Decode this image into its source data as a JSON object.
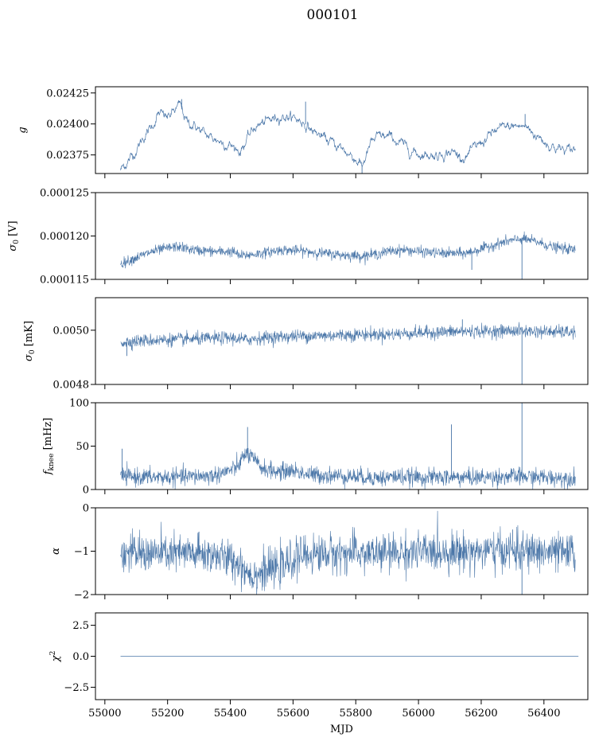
{
  "figure_title": "000101",
  "series_color": "#4a76a8",
  "chart_data": [
    {
      "type": "line",
      "ylabel": "g",
      "ylim": [
        0.0236,
        0.0243
      ],
      "yticks": [
        0.02375,
        0.024,
        0.02425
      ],
      "ytick_labels": [
        "0.02375",
        "0.02400",
        "0.02425"
      ],
      "xlim": [
        54970,
        56540
      ],
      "noise": 2.5e-05,
      "trend": [
        [
          55050,
          0.02363
        ],
        [
          55090,
          0.02375
        ],
        [
          55120,
          0.02388
        ],
        [
          55150,
          0.02398
        ],
        [
          55170,
          0.02408
        ],
        [
          55200,
          0.02405
        ],
        [
          55240,
          0.02415
        ],
        [
          55260,
          0.02402
        ],
        [
          55290,
          0.02398
        ],
        [
          55320,
          0.02391
        ],
        [
          55350,
          0.02388
        ],
        [
          55400,
          0.02383
        ],
        [
          55430,
          0.02378
        ],
        [
          55480,
          0.02398
        ],
        [
          55520,
          0.02402
        ],
        [
          55560,
          0.02407
        ],
        [
          55600,
          0.02405
        ],
        [
          55630,
          0.02402
        ],
        [
          55660,
          0.02395
        ],
        [
          55700,
          0.02388
        ],
        [
          55750,
          0.02381
        ],
        [
          55800,
          0.02372
        ],
        [
          55820,
          0.02366
        ],
        [
          55850,
          0.02385
        ],
        [
          55880,
          0.0239
        ],
        [
          55920,
          0.02388
        ],
        [
          55960,
          0.02381
        ],
        [
          56000,
          0.02376
        ],
        [
          56060,
          0.02375
        ],
        [
          56100,
          0.02378
        ],
        [
          56150,
          0.02373
        ],
        [
          56200,
          0.02385
        ],
        [
          56250,
          0.02395
        ],
        [
          56300,
          0.02398
        ],
        [
          56340,
          0.02398
        ],
        [
          56380,
          0.0239
        ],
        [
          56420,
          0.02383
        ],
        [
          56470,
          0.02378
        ],
        [
          56500,
          0.0238
        ]
      ],
      "spikes": [
        [
          55245,
          0.0242
        ],
        [
          55640,
          0.02418
        ],
        [
          56340,
          0.02408
        ],
        [
          55820,
          0.0236
        ]
      ]
    },
    {
      "type": "line",
      "ylabel": "σ0 [V]",
      "ylim": [
        0.000115,
        0.000125
      ],
      "yticks": [
        0.000115,
        0.00012,
        0.000125
      ],
      "ytick_labels": [
        "0.000115",
        "0.000120",
        "0.000125"
      ],
      "xlim": [
        54970,
        56540
      ],
      "noise": 3e-07,
      "trend": [
        [
          55050,
          0.0001168
        ],
        [
          55100,
          0.0001175
        ],
        [
          55150,
          0.0001182
        ],
        [
          55200,
          0.0001186
        ],
        [
          55230,
          0.0001188
        ],
        [
          55280,
          0.0001184
        ],
        [
          55350,
          0.0001182
        ],
        [
          55410,
          0.0001182
        ],
        [
          55430,
          0.0001177
        ],
        [
          55500,
          0.000118
        ],
        [
          55560,
          0.0001184
        ],
        [
          55620,
          0.0001183
        ],
        [
          55700,
          0.000118
        ],
        [
          55760,
          0.0001178
        ],
        [
          55820,
          0.0001177
        ],
        [
          55880,
          0.000118
        ],
        [
          55910,
          0.0001183
        ],
        [
          55960,
          0.0001184
        ],
        [
          56000,
          0.0001182
        ],
        [
          56080,
          0.000118
        ],
        [
          56150,
          0.000118
        ],
        [
          56200,
          0.0001185
        ],
        [
          56260,
          0.0001192
        ],
        [
          56330,
          0.0001197
        ],
        [
          56380,
          0.0001193
        ],
        [
          56430,
          0.0001187
        ],
        [
          56500,
          0.0001184
        ]
      ],
      "spikes": [
        [
          56330,
          0.000115
        ],
        [
          56170,
          0.0001161
        ]
      ]
    },
    {
      "type": "line",
      "ylabel": "σ0 [mK]",
      "ylim": [
        0.0048,
        0.00512
      ],
      "yticks": [
        0.0048,
        0.005
      ],
      "ytick_labels": [
        "0.0048",
        "0.0050"
      ],
      "xlim": [
        54970,
        56540
      ],
      "noise": 1.2e-05,
      "trend": [
        [
          55050,
          0.004955
        ],
        [
          55100,
          0.00496
        ],
        [
          55200,
          0.004965
        ],
        [
          55300,
          0.004968
        ],
        [
          55400,
          0.004972
        ],
        [
          55450,
          0.004965
        ],
        [
          55500,
          0.004972
        ],
        [
          55600,
          0.004978
        ],
        [
          55700,
          0.00498
        ],
        [
          55800,
          0.004984
        ],
        [
          55900,
          0.004985
        ],
        [
          56000,
          0.00499
        ],
        [
          56100,
          0.004994
        ],
        [
          56200,
          0.004996
        ],
        [
          56300,
          0.004998
        ],
        [
          56400,
          0.004995
        ],
        [
          56500,
          0.004992
        ]
      ],
      "spikes": [
        [
          56330,
          0.0048
        ],
        [
          55070,
          0.004905
        ],
        [
          56140,
          0.00504
        ]
      ]
    },
    {
      "type": "line",
      "ylabel": "f_knee [mHz]",
      "ylim": [
        0,
        100
      ],
      "yticks": [
        0,
        50,
        100
      ],
      "ytick_labels": [
        "0",
        "50",
        "100"
      ],
      "xlim": [
        54970,
        56540
      ],
      "noise": 5,
      "trend": [
        [
          55050,
          15
        ],
        [
          55200,
          14
        ],
        [
          55350,
          16
        ],
        [
          55420,
          25
        ],
        [
          55450,
          42
        ],
        [
          55470,
          36
        ],
        [
          55500,
          25
        ],
        [
          55550,
          20
        ],
        [
          55600,
          22
        ],
        [
          55650,
          17
        ],
        [
          55800,
          15
        ],
        [
          55900,
          13
        ],
        [
          55910,
          15
        ],
        [
          56000,
          14
        ],
        [
          56200,
          14
        ],
        [
          56300,
          15
        ],
        [
          56400,
          14
        ],
        [
          56500,
          13
        ]
      ],
      "spikes": [
        [
          55055,
          47
        ],
        [
          56105,
          75
        ],
        [
          56330,
          100
        ],
        [
          55455,
          72
        ]
      ]
    },
    {
      "type": "line",
      "ylabel": "α",
      "ylim": [
        -2,
        0
      ],
      "yticks": [
        -2,
        -1,
        0
      ],
      "ytick_labels": [
        "−2",
        "−1",
        "0"
      ],
      "xlim": [
        54970,
        56540
      ],
      "noise": 0.22,
      "trend": [
        [
          55050,
          -1.05
        ],
        [
          55200,
          -1.05
        ],
        [
          55350,
          -1.08
        ],
        [
          55420,
          -1.25
        ],
        [
          55470,
          -1.55
        ],
        [
          55520,
          -1.45
        ],
        [
          55570,
          -1.35
        ],
        [
          55620,
          -1.1
        ],
        [
          55700,
          -1.05
        ],
        [
          55900,
          -1.05
        ],
        [
          56000,
          -1.02
        ],
        [
          56200,
          -1.0
        ],
        [
          56300,
          -1.0
        ],
        [
          56400,
          -1.02
        ],
        [
          56500,
          -1.05
        ]
      ],
      "spikes": [
        [
          56330,
          -2.0
        ],
        [
          55300,
          -0.55
        ],
        [
          56300,
          -0.5
        ]
      ]
    },
    {
      "type": "line",
      "ylabel": "χ2",
      "ylim": [
        -3.5,
        3.5
      ],
      "yticks": [
        -2.5,
        0,
        2.5
      ],
      "ytick_labels": [
        "−2.5",
        "0.0",
        "2.5"
      ],
      "xlim": [
        54970,
        56540
      ],
      "noise": 0,
      "trend": [
        [
          55050,
          0
        ],
        [
          56510,
          0
        ]
      ],
      "spikes": [],
      "xlabel": "MJD",
      "xticks": [
        55000,
        55200,
        55400,
        55600,
        55800,
        56000,
        56200,
        56400
      ],
      "xtick_labels": [
        "55000",
        "55200",
        "55400",
        "55600",
        "55800",
        "56000",
        "56200",
        "56400"
      ]
    }
  ]
}
